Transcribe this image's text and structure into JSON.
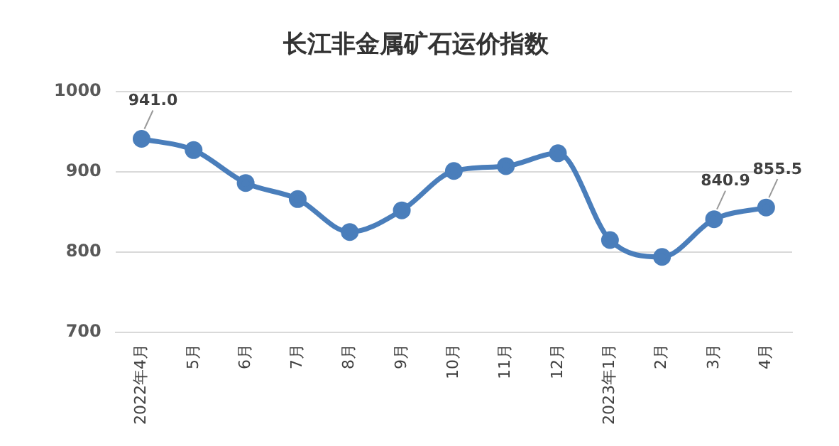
{
  "chart_data": {
    "type": "line",
    "title": "长江非金属矿石运价指数",
    "categories": [
      "2022年4月",
      "5月",
      "6月",
      "7月",
      "8月",
      "9月",
      "10月",
      "11月",
      "12月",
      "2023年1月",
      "2月",
      "3月",
      "4月"
    ],
    "series": [
      {
        "color": "#4a7ebb",
        "values": [
          941.0,
          927,
          886,
          866,
          825,
          852,
          901,
          907,
          923,
          815,
          794,
          840.9,
          855.5
        ],
        "value_labels": [
          "941.0",
          null,
          null,
          null,
          null,
          null,
          null,
          null,
          null,
          null,
          null,
          "840.9",
          "855.5"
        ]
      }
    ],
    "ylim": [
      700,
      1000
    ],
    "yticks": [
      700,
      800,
      900,
      1000
    ],
    "grid": "y",
    "marker": "circle",
    "line_style": "solid",
    "legend": false
  }
}
